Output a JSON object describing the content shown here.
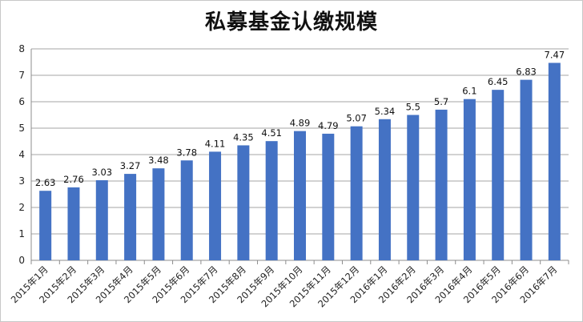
{
  "chart_data": {
    "type": "bar",
    "title": "私募基金认缴规模",
    "xlabel": "",
    "ylabel": "",
    "ylim": [
      0,
      8
    ],
    "yticks": [
      0,
      1,
      2,
      3,
      4,
      5,
      6,
      7,
      8
    ],
    "grid": true,
    "legend": "none",
    "bar_color": "#4472C4",
    "categories": [
      "2015年1月",
      "2015年2月",
      "2015年3月",
      "2015年4月",
      "2015年5月",
      "2015年6月",
      "2015年7月",
      "2015年8月",
      "2015年9月",
      "2015年10月",
      "2015年11月",
      "2015年12月",
      "2016年1月",
      "2016年2月",
      "2016年3月",
      "2016年4月",
      "2016年5月",
      "2016年6月",
      "2016年7月"
    ],
    "values": [
      2.63,
      2.76,
      3.03,
      3.27,
      3.48,
      3.78,
      4.11,
      4.35,
      4.51,
      4.89,
      4.79,
      5.07,
      5.34,
      5.5,
      5.7,
      6.1,
      6.45,
      6.83,
      7.47
    ],
    "data_labels": [
      "2.63",
      "2.76",
      "3.03",
      "3.27",
      "3.48",
      "3.78",
      "4.11",
      "4.35",
      "4.51",
      "4.89",
      "4.79",
      "5.07",
      "5.34",
      "5.5",
      "5.7",
      "6.1",
      "6.45",
      "6.83",
      "7.47"
    ]
  }
}
